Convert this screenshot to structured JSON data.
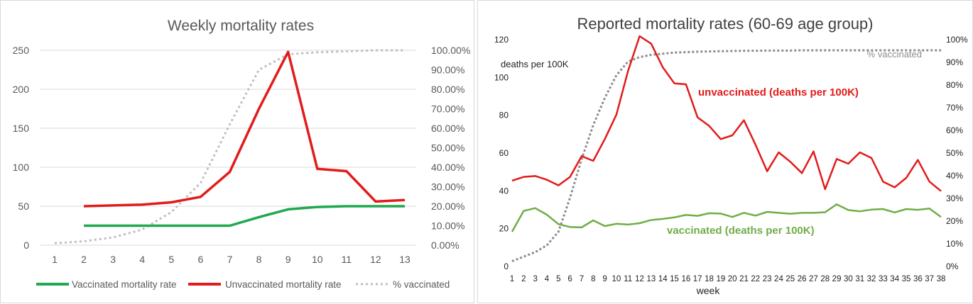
{
  "colors": {
    "vaccinated_left": "#1fa84f",
    "unvaccinated": "#e21b1b",
    "pct_vaccinated": "#bfbfbf",
    "pct_vaccinated_right": "#8c8c8c",
    "vaccinated_right": "#70ad47",
    "axis_text": "#595959",
    "grid": "#d9d9d9"
  },
  "chart_data": [
    {
      "type": "line",
      "title": "Weekly mortality rates",
      "xlabel": "",
      "ylabel": "",
      "x": [
        1,
        2,
        3,
        4,
        5,
        6,
        7,
        8,
        9,
        10,
        11,
        12,
        13
      ],
      "x_ticks": [
        "1",
        "2",
        "3",
        "4",
        "5",
        "6",
        "7",
        "8",
        "9",
        "10",
        "11",
        "12",
        "13"
      ],
      "ylim": [
        0,
        250
      ],
      "y_ticks": [
        "0",
        "50",
        "100",
        "150",
        "200",
        "250"
      ],
      "y2lim": [
        0,
        1
      ],
      "y2_ticks": [
        "0.00%",
        "10.00%",
        "20.00%",
        "30.00%",
        "40.00%",
        "50.00%",
        "60.00%",
        "70.00%",
        "80.00%",
        "90.00%",
        "100.00%"
      ],
      "grid": true,
      "legend_position": "bottom",
      "legend": [
        "Vaccinated mortality rate",
        "Unvaccinated mortality rate",
        "% vaccinated"
      ],
      "series": [
        {
          "name": "Vaccinated mortality rate",
          "axis": "left",
          "style": "solid",
          "color": "#1fa84f",
          "values": [
            null,
            25,
            25,
            25,
            25,
            25,
            25,
            36,
            46,
            49,
            50,
            50,
            50
          ]
        },
        {
          "name": "Unvaccinated mortality rate",
          "axis": "left",
          "style": "solid",
          "color": "#e21b1b",
          "values": [
            null,
            50,
            51,
            52,
            55,
            62,
            94,
            175,
            248,
            98,
            95,
            56,
            58
          ]
        },
        {
          "name": "% vaccinated",
          "axis": "right",
          "style": "dotted",
          "color": "#bfbfbf",
          "values": [
            0.01,
            0.02,
            0.04,
            0.08,
            0.17,
            0.32,
            0.62,
            0.9,
            0.98,
            0.99,
            0.995,
            1.0,
            1.0
          ]
        }
      ]
    },
    {
      "type": "line",
      "title": "Reported mortality rates (60-69 age group)",
      "xlabel": "week",
      "ylabel": "deaths per 100K",
      "x": [
        1,
        2,
        3,
        4,
        5,
        6,
        7,
        8,
        9,
        10,
        11,
        12,
        13,
        14,
        15,
        16,
        17,
        18,
        19,
        20,
        21,
        22,
        23,
        24,
        25,
        26,
        27,
        28,
        29,
        30,
        31,
        32,
        33,
        34,
        35,
        36,
        37,
        38
      ],
      "x_ticks": [
        "1",
        "2",
        "3",
        "4",
        "5",
        "6",
        "7",
        "8",
        "9",
        "10",
        "11",
        "12",
        "13",
        "14",
        "15",
        "16",
        "17",
        "18",
        "19",
        "20",
        "21",
        "22",
        "23",
        "24",
        "25",
        "26",
        "27",
        "28",
        "29",
        "30",
        "31",
        "32",
        "33",
        "34",
        "35",
        "36",
        "37",
        "38"
      ],
      "ylim": [
        0,
        120
      ],
      "y_ticks": [
        "0",
        "20",
        "40",
        "60",
        "80",
        "100",
        "120"
      ],
      "y2lim": [
        0,
        1
      ],
      "y2_ticks": [
        "0%",
        "10%",
        "20%",
        "30%",
        "40%",
        "50%",
        "60%",
        "70%",
        "80%",
        "90%",
        "100%"
      ],
      "grid": false,
      "legend_position": "none",
      "series": [
        {
          "name": "unvaccinated (deaths per 100K)",
          "axis": "left",
          "style": "solid",
          "color": "#e21b1b",
          "values": [
            45,
            47,
            47.5,
            45.5,
            42.5,
            47,
            58,
            55.5,
            67,
            80,
            103,
            121.5,
            117.5,
            105,
            96.5,
            96,
            78.5,
            74,
            67,
            69,
            77,
            64,
            50,
            60,
            55,
            49,
            60.5,
            40.5,
            56.5,
            54,
            60,
            57,
            44.5,
            41.5,
            46.5,
            56,
            44.5,
            39.5
          ]
        },
        {
          "name": "vaccinated (deaths per 100K)",
          "axis": "left",
          "style": "solid",
          "color": "#70ad47",
          "values": [
            18,
            29,
            30.5,
            27,
            22,
            20.5,
            20.3,
            24,
            21,
            22.2,
            21.8,
            22.5,
            24.2,
            24.8,
            25.6,
            26.9,
            26.4,
            27.8,
            27.6,
            25.8,
            28,
            26.5,
            28.5,
            28,
            27.5,
            28,
            28,
            28.3,
            32.5,
            29.5,
            28.8,
            29.7,
            30,
            28.2,
            30,
            29.6,
            30.3,
            25.8
          ]
        },
        {
          "name": "% vaccinated",
          "axis": "right",
          "style": "dotted",
          "color": "#8c8c8c",
          "values": [
            0.02,
            0.04,
            0.06,
            0.09,
            0.15,
            0.3,
            0.47,
            0.62,
            0.74,
            0.84,
            0.9,
            0.92,
            0.93,
            0.935,
            0.94,
            0.942,
            0.944,
            0.945,
            0.946,
            0.947,
            0.948,
            0.948,
            0.949,
            0.949,
            0.949,
            0.95,
            0.95,
            0.95,
            0.95,
            0.95,
            0.95,
            0.95,
            0.95,
            0.95,
            0.95,
            0.95,
            0.95,
            0.95
          ]
        }
      ],
      "annotations": [
        {
          "text": "unvaccinated (deaths per 100K)",
          "color": "#e21b1b"
        },
        {
          "text": "vaccinated (deaths per 100K)",
          "color": "#70ad47"
        },
        {
          "text": "% vaccinated",
          "color": "#8c8c8c"
        }
      ]
    }
  ]
}
